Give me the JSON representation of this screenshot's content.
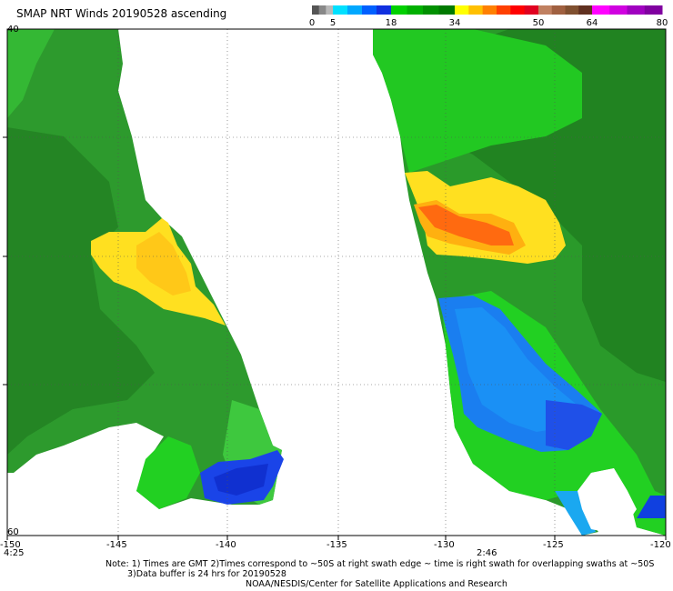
{
  "title": "SMAP NRT Winds 20190528 ascending",
  "colorbar": {
    "labels": [
      "0",
      "5",
      "18",
      "34",
      "50",
      "64",
      "80"
    ],
    "segments": [
      {
        "from": 0,
        "to": 5,
        "colors": [
          "#555555",
          "#888888",
          "#b8b8b8"
        ]
      },
      {
        "from": 5,
        "to": 18,
        "colors": [
          "#00e0ff",
          "#00a8ff",
          "#0060ff",
          "#1030e0"
        ]
      },
      {
        "from": 18,
        "to": 34,
        "colors": [
          "#00d000",
          "#00b000",
          "#009000",
          "#007a00"
        ]
      },
      {
        "from": 34,
        "to": 50,
        "colors": [
          "#ffff00",
          "#ffc000",
          "#ff8000",
          "#ff4000",
          "#ff0000",
          "#e00020"
        ]
      },
      {
        "from": 50,
        "to": 64,
        "colors": [
          "#c08060",
          "#a06040",
          "#805030",
          "#603020"
        ]
      },
      {
        "from": 64,
        "to": 80,
        "colors": [
          "#ff00ff",
          "#d000e0",
          "#a000c0",
          "#8000a0"
        ]
      }
    ]
  },
  "axes": {
    "x_ticks": [
      "-150",
      "-145",
      "-140",
      "-135",
      "-130",
      "-125",
      "-120"
    ],
    "y_ticks_left": [
      "40",
      "60"
    ]
  },
  "swath_times": [
    "4:25",
    "2:46"
  ],
  "note_lines": [
    "Note: 1) Times are GMT 2)Times correspond to ~50S at right swath edge ~ time is right swath for overlapping swaths at ~50S",
    "3)Data buffer is 24 hrs for 20190528"
  ],
  "credit": "NOAA/NESDIS/Center for Satellite Applications and Research",
  "colors": {
    "green_dark": "#1f7a1f",
    "green_mid": "#2a9a2a",
    "green_light": "#22d022",
    "yellow": "#ffe020",
    "orange": "#ff7a10",
    "blue": "#1a6ee8",
    "blue_dark": "#1030e0"
  }
}
